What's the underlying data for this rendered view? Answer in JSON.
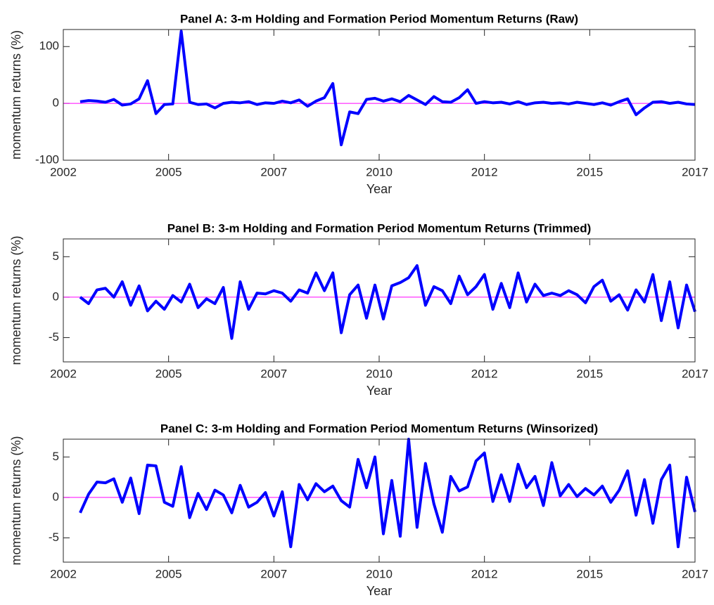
{
  "chart_data": [
    {
      "type": "line",
      "title": "Panel A: 3-m Holding and Formation Period Momentum Returns (Raw)",
      "x_label": "Year",
      "y_label": "momentum returns (%)",
      "x": [
        2002.4,
        2002.6,
        2002.8,
        2003.0,
        2003.2,
        2003.4,
        2003.6,
        2003.8,
        2004.0,
        2004.2,
        2004.4,
        2004.6,
        2004.8,
        2005.0,
        2005.2,
        2005.4,
        2005.6,
        2005.8,
        2006.0,
        2006.2,
        2006.4,
        2006.6,
        2006.8,
        2007.0,
        2007.2,
        2007.4,
        2007.6,
        2007.8,
        2008.0,
        2008.2,
        2008.4,
        2008.6,
        2008.8,
        2009.0,
        2009.2,
        2009.4,
        2009.6,
        2009.8,
        2010.0,
        2010.2,
        2010.4,
        2010.6,
        2010.8,
        2011.0,
        2011.2,
        2011.4,
        2011.6,
        2011.8,
        2012.0,
        2012.2,
        2012.4,
        2012.6,
        2012.8,
        2013.0,
        2013.2,
        2013.4,
        2013.6,
        2013.8,
        2014.0,
        2014.2,
        2014.4,
        2014.6,
        2014.8,
        2015.0,
        2015.2,
        2015.4,
        2015.6,
        2015.8,
        2016.0,
        2016.2,
        2016.4,
        2016.6,
        2016.8,
        2017.0
      ],
      "series": [
        {
          "color": "#0000ff",
          "values": [
            3,
            5,
            4,
            2,
            7,
            -3,
            -1,
            8,
            40,
            -18,
            -2,
            -1,
            127,
            2,
            -2,
            -1,
            -8,
            0,
            2,
            1,
            3,
            -2,
            1,
            0,
            4,
            1,
            6,
            -5,
            4,
            10,
            35,
            -73,
            -15,
            -18,
            7,
            9,
            4,
            8,
            3,
            14,
            6,
            -2,
            12,
            3,
            2,
            10,
            24,
            0,
            3,
            1,
            2,
            -1,
            3,
            -2,
            1,
            2,
            0,
            1,
            -1,
            2,
            0,
            -2,
            1,
            -3,
            3,
            8,
            -20,
            -8,
            2,
            3,
            0,
            2,
            -1,
            -2
          ]
        }
      ],
      "xlim": [
        2002,
        2017
      ],
      "xticks": [
        {
          "value": 2002,
          "label": "2002"
        },
        {
          "value": 2004.5,
          "label": "2005"
        },
        {
          "value": 2007,
          "label": "2007"
        },
        {
          "value": 2009.5,
          "label": "2010"
        },
        {
          "value": 2012,
          "label": "2012"
        },
        {
          "value": 2014.5,
          "label": "2015"
        },
        {
          "value": 2017,
          "label": "2017"
        }
      ],
      "ylim": [
        -100,
        130
      ],
      "yticks": [
        -100,
        0,
        100
      ],
      "zero_line_color": "#ff00ff"
    },
    {
      "type": "line",
      "title": "Panel B: 3-m Holding and Formation Period Momentum Returns (Trimmed)",
      "x_label": "Year",
      "y_label": "momentum returns (%)",
      "x": [
        2002.4,
        2002.6,
        2002.8,
        2003.0,
        2003.2,
        2003.4,
        2003.6,
        2003.8,
        2004.0,
        2004.2,
        2004.4,
        2004.6,
        2004.8,
        2005.0,
        2005.2,
        2005.4,
        2005.6,
        2005.8,
        2006.0,
        2006.2,
        2006.4,
        2006.6,
        2006.8,
        2007.0,
        2007.2,
        2007.4,
        2007.6,
        2007.8,
        2008.0,
        2008.2,
        2008.4,
        2008.6,
        2008.8,
        2009.0,
        2009.2,
        2009.4,
        2009.6,
        2009.8,
        2010.0,
        2010.2,
        2010.4,
        2010.6,
        2010.8,
        2011.0,
        2011.2,
        2011.4,
        2011.6,
        2011.8,
        2012.0,
        2012.2,
        2012.4,
        2012.6,
        2012.8,
        2013.0,
        2013.2,
        2013.4,
        2013.6,
        2013.8,
        2014.0,
        2014.2,
        2014.4,
        2014.6,
        2014.8,
        2015.0,
        2015.2,
        2015.4,
        2015.6,
        2015.8,
        2016.0,
        2016.2,
        2016.4,
        2016.6,
        2016.8,
        2017.0
      ],
      "series": [
        {
          "color": "#0000ff",
          "values": [
            0,
            -0.8,
            0.9,
            1.1,
            0,
            1.9,
            -1,
            1.4,
            -1.7,
            -0.5,
            -1.5,
            0.2,
            -0.6,
            1.6,
            -1.3,
            -0.2,
            -0.8,
            1.2,
            -5.1,
            1.9,
            -1.5,
            0.5,
            0.4,
            0.8,
            0.5,
            -0.5,
            0.9,
            0.5,
            3,
            0.8,
            3,
            -4.4,
            0.3,
            1.5,
            -2.6,
            1.5,
            -2.7,
            1.4,
            1.8,
            2.4,
            3.9,
            -1,
            1.3,
            0.8,
            -0.8,
            2.6,
            0.3,
            1.3,
            2.8,
            -1.5,
            1.7,
            -1.3,
            3,
            -0.6,
            1.6,
            0.2,
            0.5,
            0.2,
            0.8,
            0.3,
            -0.7,
            1.3,
            2.1,
            -0.5,
            0.3,
            -1.6,
            0.9,
            -0.6,
            2.8,
            -2.9,
            1.9,
            -3.8,
            1.5,
            -1.8
          ]
        }
      ],
      "xlim": [
        2002,
        2017
      ],
      "xticks": [
        {
          "value": 2002,
          "label": "2002"
        },
        {
          "value": 2004.5,
          "label": "2005"
        },
        {
          "value": 2007,
          "label": "2007"
        },
        {
          "value": 2009.5,
          "label": "2010"
        },
        {
          "value": 2012,
          "label": "2012"
        },
        {
          "value": 2014.5,
          "label": "2015"
        },
        {
          "value": 2017,
          "label": "2017"
        }
      ],
      "ylim": [
        -8,
        7.2
      ],
      "yticks": [
        -5,
        0,
        5
      ],
      "zero_line_color": "#ff00ff"
    },
    {
      "type": "line",
      "title": "Panel C: 3-m Holding and Formation Period Momentum Returns (Winsorized)",
      "x_label": "Year",
      "y_label": "momentum returns (%)",
      "x": [
        2002.4,
        2002.6,
        2002.8,
        2003.0,
        2003.2,
        2003.4,
        2003.6,
        2003.8,
        2004.0,
        2004.2,
        2004.4,
        2004.6,
        2004.8,
        2005.0,
        2005.2,
        2005.4,
        2005.6,
        2005.8,
        2006.0,
        2006.2,
        2006.4,
        2006.6,
        2006.8,
        2007.0,
        2007.2,
        2007.4,
        2007.6,
        2007.8,
        2008.0,
        2008.2,
        2008.4,
        2008.6,
        2008.8,
        2009.0,
        2009.2,
        2009.4,
        2009.6,
        2009.8,
        2010.0,
        2010.2,
        2010.4,
        2010.6,
        2010.8,
        2011.0,
        2011.2,
        2011.4,
        2011.6,
        2011.8,
        2012.0,
        2012.2,
        2012.4,
        2012.6,
        2012.8,
        2013.0,
        2013.2,
        2013.4,
        2013.6,
        2013.8,
        2014.0,
        2014.2,
        2014.4,
        2014.6,
        2014.8,
        2015.0,
        2015.2,
        2015.4,
        2015.6,
        2015.8,
        2016.0,
        2016.2,
        2016.4,
        2016.6,
        2016.8,
        2017.0
      ],
      "series": [
        {
          "color": "#0000ff",
          "values": [
            -1.9,
            0.4,
            1.9,
            1.8,
            2.3,
            -0.6,
            2.4,
            -2,
            4,
            3.9,
            -0.6,
            -1.1,
            3.8,
            -2.5,
            0.5,
            -1.5,
            0.9,
            0.3,
            -1.9,
            1.5,
            -1.2,
            -0.6,
            0.6,
            -2.3,
            0.7,
            -6.1,
            1.6,
            -0.3,
            1.7,
            0.7,
            1.4,
            -0.4,
            -1.2,
            4.7,
            1.2,
            5,
            -4.5,
            2.1,
            -4.8,
            7.2,
            -3.7,
            4.2,
            -0.8,
            -4.3,
            2.6,
            0.8,
            1.3,
            4.5,
            5.5,
            -0.5,
            2.8,
            -0.5,
            4.1,
            1.2,
            2.6,
            -1,
            4.3,
            0.2,
            1.6,
            0.1,
            1.1,
            0.3,
            1.4,
            -0.6,
            0.9,
            3.3,
            -2.2,
            2.2,
            -3.2,
            2.2,
            4,
            -6.1,
            2.5,
            -1.8
          ]
        }
      ],
      "xlim": [
        2002,
        2017
      ],
      "xticks": [
        {
          "value": 2002,
          "label": "2002"
        },
        {
          "value": 2004.5,
          "label": "2005"
        },
        {
          "value": 2007,
          "label": "2007"
        },
        {
          "value": 2009.5,
          "label": "2010"
        },
        {
          "value": 2012,
          "label": "2012"
        },
        {
          "value": 2014.5,
          "label": "2015"
        },
        {
          "value": 2017,
          "label": "2017"
        }
      ],
      "ylim": [
        -8,
        7.2
      ],
      "yticks": [
        -5,
        0,
        5
      ],
      "zero_line_color": "#ff00ff"
    }
  ]
}
